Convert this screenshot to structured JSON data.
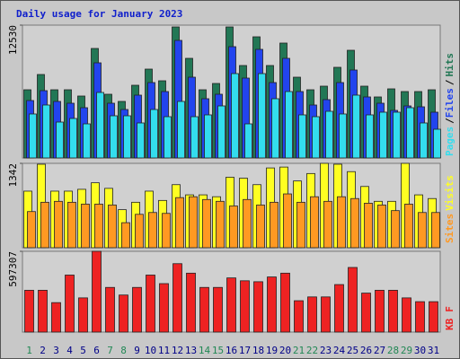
{
  "chart_data": [
    {
      "type": "bar",
      "title": "Daily usage for January 2023",
      "series": [
        {
          "name": "Hits",
          "color": "#227755",
          "values": [
            6434,
            7873,
            6434,
            6434,
            5842,
            10329,
            6011,
            5334,
            6858,
            8381,
            7281,
            12360,
            9397,
            6434,
            7027,
            12360,
            8720,
            11429,
            8720,
            10837,
            7619,
            6434,
            6773,
            8551,
            10159,
            6773,
            5757,
            6519,
            6265,
            6265,
            6434
          ]
        },
        {
          "name": "Files",
          "color": "#2244ee",
          "values": [
            5418,
            6350,
            5334,
            5164,
            4741,
            8974,
            5164,
            4572,
            5926,
            7112,
            6265,
            11090,
            7619,
            5588,
            6011,
            10498,
            7535,
            10244,
            7112,
            9397,
            6265,
            4995,
            5503,
            7112,
            8297,
            5757,
            5164,
            4487,
            4910,
            4826,
            4318
          ]
        },
        {
          "name": "Pages",
          "color": "#33ddee",
          "values": [
            4149,
            4995,
            3386,
            3725,
            3217,
            6180,
            3979,
            3979,
            3302,
            4572,
            3894,
            5334,
            3894,
            4064,
            4910,
            7958,
            3217,
            7958,
            5588,
            6265,
            4064,
            3894,
            4402,
            4149,
            5926,
            4064,
            4318,
            4318,
            4741,
            3302,
            2709
          ]
        }
      ],
      "ylim": [
        0,
        12530
      ],
      "yticks": [
        12530
      ],
      "legend_separator": "/"
    },
    {
      "type": "bar",
      "series": [
        {
          "name": "Visits",
          "color": "#ffff22",
          "values": [
            900,
            1328,
            900,
            900,
            929,
            1033,
            944,
            605,
            723,
            900,
            752,
            1003,
            841,
            841,
            811,
            1121,
            1106,
            1003,
            1269,
            1283,
            1062,
            1180,
            1342,
            1328,
            1210,
            974,
            738,
            738,
            1342,
            841,
            782
          ]
        },
        {
          "name": "Sites",
          "color": "#ff9922",
          "values": [
            575,
            723,
            738,
            723,
            693,
            693,
            679,
            398,
            531,
            560,
            546,
            797,
            811,
            767,
            738,
            664,
            767,
            679,
            723,
            856,
            723,
            811,
            738,
            811,
            782,
            708,
            679,
            590,
            693,
            560,
            560
          ]
        }
      ],
      "ylim": [
        0,
        1342
      ],
      "yticks": [
        1342
      ]
    },
    {
      "type": "bar",
      "categories": [
        "1",
        "2",
        "3",
        "4",
        "5",
        "6",
        "7",
        "8",
        "9",
        "10",
        "11",
        "12",
        "13",
        "14",
        "15",
        "16",
        "17",
        "18",
        "19",
        "20",
        "21",
        "22",
        "23",
        "24",
        "25",
        "26",
        "27",
        "28",
        "29",
        "30",
        "31"
      ],
      "highlighted_categories": [
        "1",
        "7",
        "8",
        "14",
        "15",
        "21",
        "22",
        "28",
        "29"
      ],
      "highlight_color": "#228855",
      "category_color": "#000088",
      "series": [
        {
          "name": "KB",
          "color": "#ee2222",
          "values": [
            309188,
            309188,
            217837,
            421620,
            252972,
            597307,
            330269,
            274053,
            330269,
            421620,
            358377,
            505944,
            435674,
            330269,
            330269,
            400539,
            379458,
            372431,
            407566,
            435674,
            231891,
            259999,
            259999,
            351350,
            477836,
            288107,
            309188,
            309188,
            252972,
            224864,
            224864
          ]
        }
      ],
      "ylim": [
        0,
        597307
      ],
      "yticks": [
        597307
      ],
      "legend_extra": "F"
    }
  ]
}
